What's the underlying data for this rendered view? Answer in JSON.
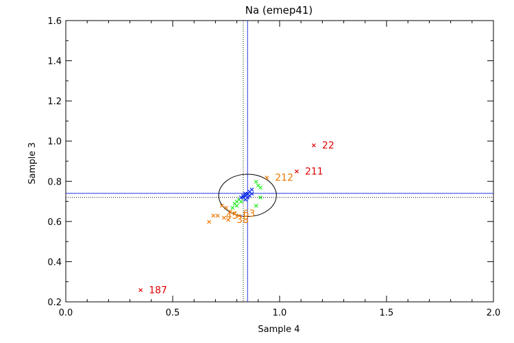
{
  "chart_data": {
    "type": "scatter",
    "title": "Na (emep41)",
    "xlabel": "Sample 4",
    "ylabel": "Sample 3",
    "xlim": [
      0.0,
      2.0
    ],
    "ylim": [
      0.2,
      1.6
    ],
    "xticks": [
      "0.0",
      "0.5",
      "1.0",
      "1.5",
      "2.0"
    ],
    "yticks": [
      "0.2",
      "0.4",
      "0.6",
      "0.8",
      "1.0",
      "1.2",
      "1.4",
      "1.6"
    ],
    "grid": false,
    "reference_lines": {
      "vertical_solid": 0.85,
      "vertical_dotted": 0.83,
      "horizontal_solid": 0.74,
      "horizontal_dotted": 0.72
    },
    "ellipse": {
      "cx": 0.85,
      "cy": 0.73,
      "rx": 0.135,
      "ry": 0.105,
      "color": "#000000"
    },
    "series": [
      {
        "color": "#dd0000",
        "points": [
          {
            "x": 1.16,
            "y": 0.98,
            "label": "22"
          },
          {
            "x": 1.08,
            "y": 0.85,
            "label": "211"
          },
          {
            "x": 0.35,
            "y": 0.26,
            "label": "187"
          }
        ]
      },
      {
        "color": "#ee7700",
        "points": [
          {
            "x": 0.94,
            "y": 0.82,
            "label": "212"
          },
          {
            "x": 0.73,
            "y": 0.68,
            "label": ""
          },
          {
            "x": 0.75,
            "y": 0.67,
            "label": ""
          },
          {
            "x": 0.77,
            "y": 0.65,
            "label": ""
          },
          {
            "x": 0.69,
            "y": 0.63,
            "label": ""
          },
          {
            "x": 0.71,
            "y": 0.63,
            "label": "45"
          },
          {
            "x": 0.79,
            "y": 0.64,
            "label": "63"
          },
          {
            "x": 0.81,
            "y": 0.63,
            "label": ""
          },
          {
            "x": 0.74,
            "y": 0.62,
            "label": ""
          },
          {
            "x": 0.76,
            "y": 0.61,
            "label": "38"
          },
          {
            "x": 0.67,
            "y": 0.6,
            "label": ""
          }
        ]
      },
      {
        "color": "#22ee22",
        "points": [
          {
            "x": 0.89,
            "y": 0.8
          },
          {
            "x": 0.9,
            "y": 0.78
          },
          {
            "x": 0.91,
            "y": 0.77
          },
          {
            "x": 0.91,
            "y": 0.72
          },
          {
            "x": 0.89,
            "y": 0.68
          },
          {
            "x": 0.8,
            "y": 0.7
          },
          {
            "x": 0.79,
            "y": 0.69
          },
          {
            "x": 0.8,
            "y": 0.68
          },
          {
            "x": 0.82,
            "y": 0.7
          },
          {
            "x": 0.81,
            "y": 0.71
          },
          {
            "x": 0.78,
            "y": 0.67
          },
          {
            "x": 0.83,
            "y": 0.72
          }
        ]
      },
      {
        "color": "#0022ee",
        "points": [
          {
            "x": 0.82,
            "y": 0.72
          },
          {
            "x": 0.83,
            "y": 0.73
          },
          {
            "x": 0.84,
            "y": 0.73
          },
          {
            "x": 0.85,
            "y": 0.74
          },
          {
            "x": 0.86,
            "y": 0.75
          },
          {
            "x": 0.87,
            "y": 0.76
          },
          {
            "x": 0.85,
            "y": 0.72
          },
          {
            "x": 0.84,
            "y": 0.71
          },
          {
            "x": 0.83,
            "y": 0.72
          },
          {
            "x": 0.86,
            "y": 0.73
          },
          {
            "x": 0.87,
            "y": 0.74
          },
          {
            "x": 0.84,
            "y": 0.74
          }
        ]
      }
    ]
  }
}
